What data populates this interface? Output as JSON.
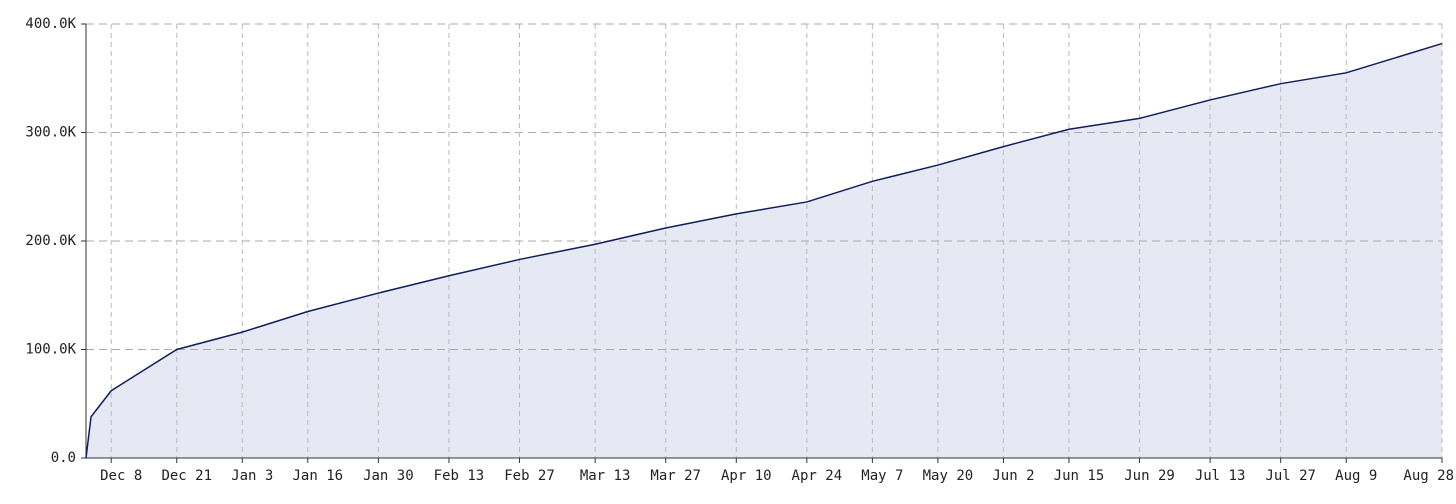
{
  "chart_data": {
    "type": "area",
    "x": [
      0,
      1,
      2,
      5,
      18,
      31,
      44,
      58,
      72,
      86,
      101,
      115,
      129,
      143,
      156,
      169,
      182,
      195,
      209,
      223,
      237,
      250,
      269
    ],
    "series": [
      {
        "color": "#0f1f5c",
        "fill": "#e6e9f4",
        "values": [
          0,
          38000,
          44000,
          62000,
          100000,
          116000,
          135000,
          152000,
          168000,
          183000,
          197000,
          212000,
          225000,
          236000,
          255000,
          270000,
          287000,
          303000,
          313000,
          330000,
          345000,
          355000,
          382000
        ]
      }
    ],
    "xlim": [
      0,
      269
    ],
    "xticks": [
      {
        "value": 5,
        "label": "Dec 8"
      },
      {
        "value": 18,
        "label": "Dec 21"
      },
      {
        "value": 31,
        "label": "Jan 3"
      },
      {
        "value": 44,
        "label": "Jan 16"
      },
      {
        "value": 58,
        "label": "Jan 30"
      },
      {
        "value": 72,
        "label": "Feb 13"
      },
      {
        "value": 86,
        "label": "Feb 27"
      },
      {
        "value": 101,
        "label": "Mar 13"
      },
      {
        "value": 115,
        "label": "Mar 27"
      },
      {
        "value": 129,
        "label": "Apr 10"
      },
      {
        "value": 143,
        "label": "Apr 24"
      },
      {
        "value": 156,
        "label": "May 7"
      },
      {
        "value": 169,
        "label": "May 20"
      },
      {
        "value": 182,
        "label": "Jun 2"
      },
      {
        "value": 195,
        "label": "Jun 15"
      },
      {
        "value": 209,
        "label": "Jun 29"
      },
      {
        "value": 223,
        "label": "Jul 13"
      },
      {
        "value": 237,
        "label": "Jul 27"
      },
      {
        "value": 250,
        "label": "Aug 9"
      },
      {
        "value": 269,
        "label": "Aug 28"
      }
    ],
    "ylim": [
      0,
      400000
    ],
    "yticks": [
      {
        "value": 0,
        "label": "0.0"
      },
      {
        "value": 100000,
        "label": "100.0K"
      },
      {
        "value": 200000,
        "label": "200.0K"
      },
      {
        "value": 300000,
        "label": "300.0K"
      },
      {
        "value": 400000,
        "label": "400.0K"
      }
    ],
    "grid": true
  }
}
